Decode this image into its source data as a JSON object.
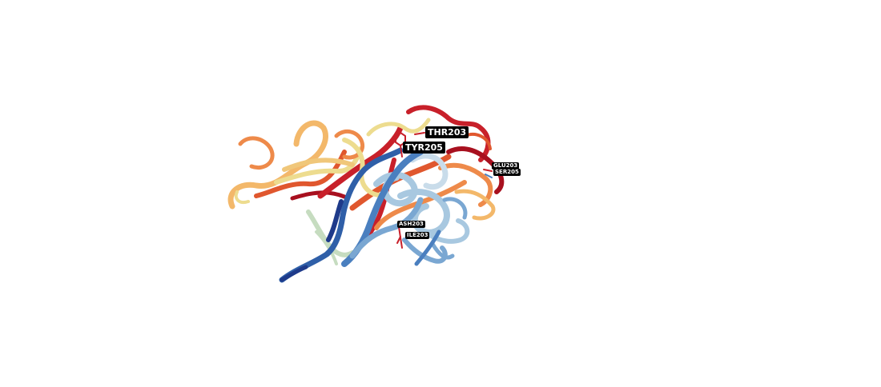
{
  "labels": {
    "thr": "THR203",
    "tyr": "TYR205",
    "glu": "GLU203",
    "ser": "SER205",
    "ash": "ASH203",
    "ile": "ILE203"
  },
  "colors": {
    "background": "#ffffff",
    "label_bg": "#000000",
    "label_text": "#ffffff",
    "spectrum": [
      "#1e3a8a",
      "#2f5fa8",
      "#4a7fbf",
      "#7aa7d2",
      "#a8c8e0",
      "#c6dcc0",
      "#eddc8f",
      "#f3b86a",
      "#ee8a4a",
      "#e0572e",
      "#c8202a",
      "#a8101f"
    ]
  }
}
